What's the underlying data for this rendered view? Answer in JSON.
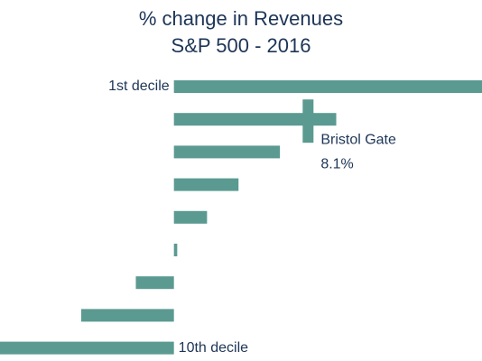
{
  "chart_data": {
    "type": "bar",
    "orientation": "horizontal",
    "title": "% change in Revenues",
    "subtitle": "S&P 500 - 2016",
    "categories": [
      "1st decile",
      null,
      null,
      null,
      null,
      null,
      null,
      null,
      "10th decile"
    ],
    "values": [
      18.6,
      9.8,
      6.4,
      3.9,
      2.0,
      0.2,
      -2.3,
      -5.6,
      -10.5
    ],
    "color": "#5a9a91",
    "xlim": [
      -10.5,
      18.6
    ],
    "annotation": {
      "label": "Bristol Gate",
      "value": 8.1,
      "value_label": "8.1%"
    }
  }
}
